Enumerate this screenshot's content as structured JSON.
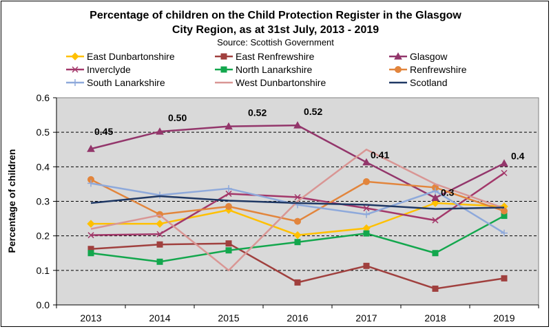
{
  "chart_data": {
    "type": "line",
    "title_lines": [
      "Percentage of children on the Child Protection Register in the Glasgow",
      "City Region, as at 31st July, 2013 - 2019"
    ],
    "subtitle": "Source: Scottish Government",
    "xlabel": "",
    "ylabel": "Percentage of children",
    "categories": [
      "2013",
      "2014",
      "2015",
      "2016",
      "2017",
      "2018",
      "2019"
    ],
    "ylim": [
      0,
      0.6
    ],
    "yticks": [
      "0.0",
      "0.1",
      "0.2",
      "0.3",
      "0.4",
      "0.5",
      "0.6"
    ],
    "grid": true,
    "plot_background": "#d9d9d9",
    "series": [
      {
        "name": "East Dunbartonshire",
        "color": "#ffc000",
        "marker": "diamond",
        "values": [
          0.235,
          0.235,
          0.275,
          0.202,
          0.222,
          0.295,
          0.285
        ]
      },
      {
        "name": "East Renfrewshire",
        "color": "#a0403e",
        "marker": "square",
        "values": [
          0.162,
          0.175,
          0.178,
          0.065,
          0.113,
          0.047,
          0.077
        ]
      },
      {
        "name": "Glasgow",
        "color": "#93366b",
        "marker": "triangle",
        "values": [
          0.452,
          0.502,
          0.517,
          0.52,
          0.413,
          0.31,
          0.41
        ]
      },
      {
        "name": "Inverclyde",
        "color": "#a3386a",
        "marker": "x",
        "values": [
          0.202,
          0.205,
          0.322,
          0.312,
          0.28,
          0.245,
          0.382
        ]
      },
      {
        "name": "North Lanarkshire",
        "color": "#13a74d",
        "marker": "square",
        "values": [
          0.15,
          0.125,
          0.158,
          0.182,
          0.207,
          0.15,
          0.258
        ]
      },
      {
        "name": "Renfrewshire",
        "color": "#e2853c",
        "marker": "circle",
        "values": [
          0.363,
          0.262,
          0.285,
          0.242,
          0.357,
          0.34,
          0.272
        ]
      },
      {
        "name": "South Lanarkshire",
        "color": "#8ea9db",
        "marker": "plus",
        "values": [
          0.352,
          0.318,
          0.337,
          0.29,
          0.262,
          0.33,
          0.208
        ]
      },
      {
        "name": "West Dunbartonshire",
        "color": "#d99694",
        "marker": "none",
        "values": [
          0.22,
          0.26,
          0.1,
          0.3,
          0.45,
          0.35,
          0.28
        ]
      },
      {
        "name": "Scotland",
        "color": "#1f3864",
        "marker": "none",
        "values": [
          0.295,
          0.315,
          0.302,
          0.295,
          0.29,
          0.278,
          0.282
        ]
      }
    ],
    "annotations": [
      "0.45",
      "0.50",
      "0.52",
      "0.52",
      "0.41",
      "0.3",
      "0.4"
    ],
    "annotation_values": [
      0.452,
      0.502,
      0.517,
      0.52,
      0.413,
      0.31,
      0.41
    ]
  }
}
